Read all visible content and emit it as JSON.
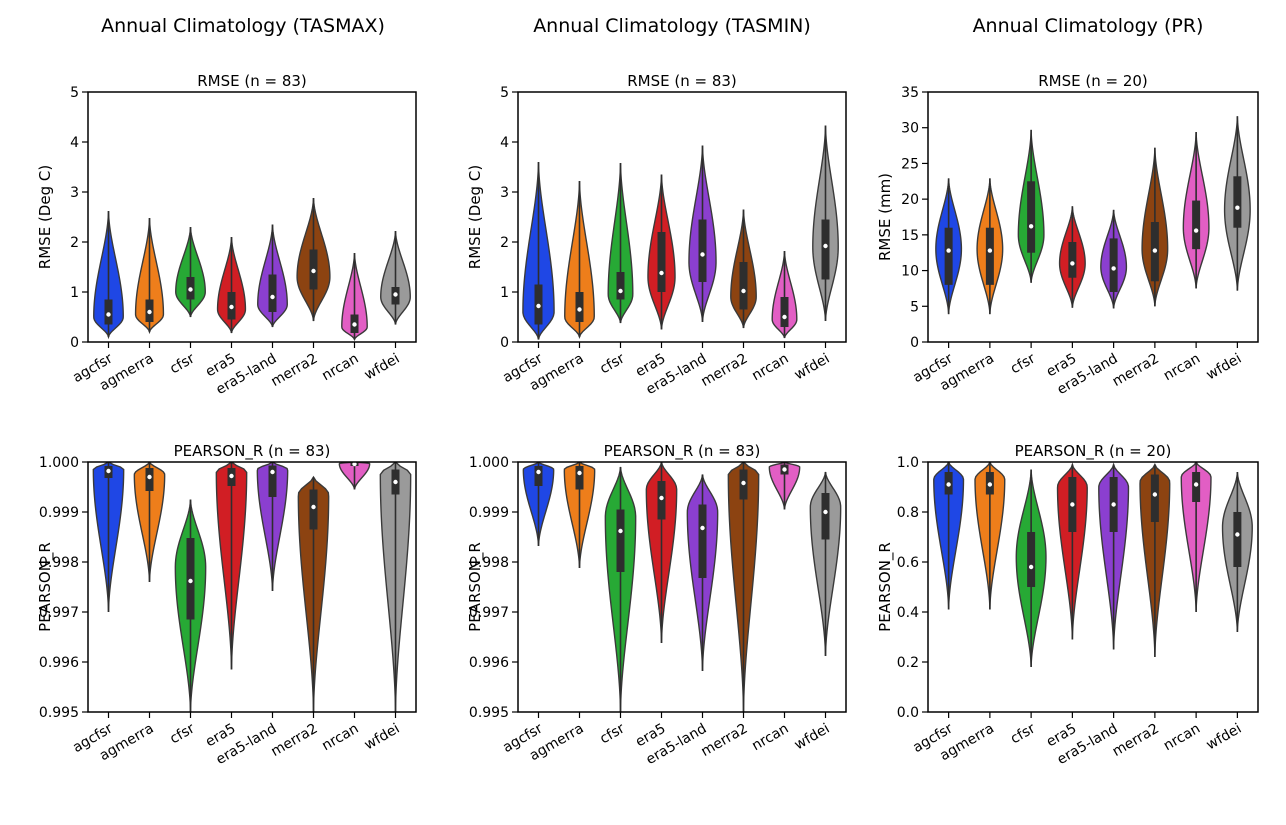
{
  "palette": {
    "agcfsr": "#1f47e5",
    "agmerra": "#ee7e1b",
    "cfsr": "#27a935",
    "era5": "#d11e24",
    "era5-land": "#8b3fd0",
    "merra2": "#8c4311",
    "nrcan": "#e25ec4",
    "wfdei": "#9a9a9a"
  },
  "column_titles": [
    "Annual Climatology (TASMAX)",
    "Annual Climatology (TASMIN)",
    "Annual Climatology (PR)"
  ],
  "chart_data": [
    {
      "type": "violin",
      "column": 0,
      "row": 0,
      "title": "RMSE (n = 83)",
      "xlabel": "",
      "ylabel": "RMSE (Deg C)",
      "ylim": [
        0,
        5
      ],
      "yticks": [
        "0",
        "1",
        "2",
        "3",
        "4",
        "5"
      ],
      "categories": [
        "agcfsr",
        "agmerra",
        "cfsr",
        "era5",
        "era5-land",
        "merra2",
        "nrcan",
        "wfdei"
      ],
      "series": [
        {
          "name": "agcfsr",
          "min": 0.1,
          "q1": 0.35,
          "median": 0.55,
          "q3": 0.85,
          "max": 2.62,
          "hw": 0.72,
          "peak": 0.5
        },
        {
          "name": "agmerra",
          "min": 0.2,
          "q1": 0.4,
          "median": 0.6,
          "q3": 0.85,
          "max": 2.48,
          "hw": 0.68,
          "peak": 0.55
        },
        {
          "name": "cfsr",
          "min": 0.5,
          "q1": 0.85,
          "median": 1.05,
          "q3": 1.3,
          "max": 2.3,
          "hw": 0.72,
          "peak": 1.0
        },
        {
          "name": "era5",
          "min": 0.18,
          "q1": 0.45,
          "median": 0.7,
          "q3": 1.0,
          "max": 2.1,
          "hw": 0.68,
          "peak": 0.65
        },
        {
          "name": "era5-land",
          "min": 0.3,
          "q1": 0.6,
          "median": 0.9,
          "q3": 1.35,
          "max": 2.35,
          "hw": 0.72,
          "peak": 0.75
        },
        {
          "name": "merra2",
          "min": 0.42,
          "q1": 1.05,
          "median": 1.42,
          "q3": 1.85,
          "max": 2.88,
          "hw": 0.8,
          "peak": 1.3
        },
        {
          "name": "nrcan",
          "min": 0.05,
          "q1": 0.18,
          "median": 0.35,
          "q3": 0.55,
          "max": 1.78,
          "hw": 0.62,
          "peak": 0.3
        },
        {
          "name": "wfdei",
          "min": 0.35,
          "q1": 0.75,
          "median": 0.95,
          "q3": 1.1,
          "max": 2.22,
          "hw": 0.72,
          "peak": 0.9
        }
      ]
    },
    {
      "type": "violin",
      "column": 1,
      "row": 0,
      "title": "RMSE (n = 83)",
      "xlabel": "",
      "ylabel": "RMSE (Deg C)",
      "ylim": [
        0,
        5
      ],
      "yticks": [
        "0",
        "1",
        "2",
        "3",
        "4",
        "5"
      ],
      "categories": [
        "agcfsr",
        "agmerra",
        "cfsr",
        "era5",
        "era5-land",
        "merra2",
        "nrcan",
        "wfdei"
      ],
      "series": [
        {
          "name": "agcfsr",
          "min": 0.05,
          "q1": 0.35,
          "median": 0.72,
          "q3": 1.15,
          "max": 3.6,
          "hw": 0.76,
          "peak": 0.6
        },
        {
          "name": "agmerra",
          "min": 0.1,
          "q1": 0.4,
          "median": 0.65,
          "q3": 1.0,
          "max": 3.22,
          "hw": 0.72,
          "peak": 0.5
        },
        {
          "name": "cfsr",
          "min": 0.38,
          "q1": 0.85,
          "median": 1.02,
          "q3": 1.4,
          "max": 3.58,
          "hw": 0.6,
          "peak": 0.95
        },
        {
          "name": "era5",
          "min": 0.25,
          "q1": 1.0,
          "median": 1.38,
          "q3": 2.2,
          "max": 3.35,
          "hw": 0.66,
          "peak": 1.3
        },
        {
          "name": "era5-land",
          "min": 0.4,
          "q1": 1.2,
          "median": 1.75,
          "q3": 2.45,
          "max": 3.93,
          "hw": 0.66,
          "peak": 1.6
        },
        {
          "name": "merra2",
          "min": 0.28,
          "q1": 0.65,
          "median": 1.02,
          "q3": 1.6,
          "max": 2.65,
          "hw": 0.62,
          "peak": 0.9
        },
        {
          "name": "nrcan",
          "min": 0.08,
          "q1": 0.3,
          "median": 0.5,
          "q3": 0.9,
          "max": 1.82,
          "hw": 0.6,
          "peak": 0.45
        },
        {
          "name": "wfdei",
          "min": 0.42,
          "q1": 1.25,
          "median": 1.92,
          "q3": 2.45,
          "max": 4.33,
          "hw": 0.62,
          "peak": 1.9
        }
      ]
    },
    {
      "type": "violin",
      "column": 2,
      "row": 0,
      "title": "RMSE (n = 20)",
      "xlabel": "",
      "ylabel": "RMSE (mm)",
      "ylim": [
        0,
        35
      ],
      "yticks": [
        "0",
        "5",
        "10",
        "15",
        "20",
        "25",
        "30",
        "35"
      ],
      "categories": [
        "agcfsr",
        "agmerra",
        "cfsr",
        "era5",
        "era5-land",
        "merra2",
        "nrcan",
        "wfdei"
      ],
      "series": [
        {
          "name": "agcfsr",
          "min": 3.9,
          "q1": 8.0,
          "median": 12.8,
          "q3": 16.0,
          "max": 22.9,
          "hw": 0.62,
          "peak": 13.0
        },
        {
          "name": "agmerra",
          "min": 3.9,
          "q1": 8.0,
          "median": 12.8,
          "q3": 16.0,
          "max": 22.9,
          "hw": 0.62,
          "peak": 13.0
        },
        {
          "name": "cfsr",
          "min": 8.3,
          "q1": 12.5,
          "median": 16.2,
          "q3": 22.5,
          "max": 29.7,
          "hw": 0.62,
          "peak": 15.0
        },
        {
          "name": "era5",
          "min": 4.8,
          "q1": 9.0,
          "median": 11.0,
          "q3": 14.0,
          "max": 19.0,
          "hw": 0.62,
          "peak": 11.0
        },
        {
          "name": "era5-land",
          "min": 4.7,
          "q1": 7.0,
          "median": 10.3,
          "q3": 14.5,
          "max": 18.5,
          "hw": 0.62,
          "peak": 10.5
        },
        {
          "name": "merra2",
          "min": 5.0,
          "q1": 8.5,
          "median": 12.8,
          "q3": 16.8,
          "max": 27.2,
          "hw": 0.62,
          "peak": 13.0
        },
        {
          "name": "nrcan",
          "min": 7.5,
          "q1": 13.0,
          "median": 15.6,
          "q3": 19.8,
          "max": 29.4,
          "hw": 0.62,
          "peak": 16.0
        },
        {
          "name": "wfdei",
          "min": 7.2,
          "q1": 16.0,
          "median": 18.8,
          "q3": 23.2,
          "max": 31.6,
          "hw": 0.62,
          "peak": 18.5
        }
      ]
    },
    {
      "type": "violin",
      "column": 0,
      "row": 1,
      "title": "PEARSON_R (n = 83)",
      "xlabel": "",
      "ylabel": "PEARSON_R",
      "ylim": [
        0.995,
        1.0
      ],
      "yticks": [
        "0.995",
        "0.996",
        "0.997",
        "0.998",
        "0.999",
        "1.000"
      ],
      "categories": [
        "agcfsr",
        "agmerra",
        "cfsr",
        "era5",
        "era5-land",
        "merra2",
        "nrcan",
        "wfdei"
      ],
      "series": [
        {
          "name": "agcfsr",
          "min": 0.997,
          "q1": 0.99968,
          "median": 0.99982,
          "q3": 0.99992,
          "max": 1.0,
          "hw": 0.74,
          "peak": 0.99985
        },
        {
          "name": "agmerra",
          "min": 0.9976,
          "q1": 0.99942,
          "median": 0.9997,
          "q3": 0.99988,
          "max": 1.0,
          "hw": 0.74,
          "peak": 0.99975
        },
        {
          "name": "cfsr",
          "min": 0.995,
          "q1": 0.99685,
          "median": 0.99762,
          "q3": 0.99848,
          "max": 0.99925,
          "hw": 0.74,
          "peak": 0.9979
        },
        {
          "name": "era5",
          "min": 0.99585,
          "q1": 0.99952,
          "median": 0.99972,
          "q3": 0.99988,
          "max": 1.0,
          "hw": 0.74,
          "peak": 0.9998
        },
        {
          "name": "era5-land",
          "min": 0.99742,
          "q1": 0.9993,
          "median": 0.9998,
          "q3": 0.99993,
          "max": 1.0,
          "hw": 0.74,
          "peak": 0.99985
        },
        {
          "name": "merra2",
          "min": 0.995,
          "q1": 0.99865,
          "median": 0.9991,
          "q3": 0.99945,
          "max": 0.9997,
          "hw": 0.74,
          "peak": 0.99935
        },
        {
          "name": "nrcan",
          "min": 0.99945,
          "q1": 0.99992,
          "median": 0.99996,
          "q3": 0.99999,
          "max": 1.0,
          "hw": 0.74,
          "peak": 0.99997
        },
        {
          "name": "wfdei",
          "min": 0.995,
          "q1": 0.99935,
          "median": 0.9996,
          "q3": 0.99985,
          "max": 1.0,
          "hw": 0.74,
          "peak": 0.99975
        }
      ]
    },
    {
      "type": "violin",
      "column": 1,
      "row": 1,
      "title": "PEARSON_R (n = 83)",
      "xlabel": "",
      "ylabel": "PEARSON_R",
      "ylim": [
        0.995,
        1.0
      ],
      "yticks": [
        "0.995",
        "0.996",
        "0.997",
        "0.998",
        "0.999",
        "1.000"
      ],
      "categories": [
        "agcfsr",
        "agmerra",
        "cfsr",
        "era5",
        "era5-land",
        "merra2",
        "nrcan",
        "wfdei"
      ],
      "series": [
        {
          "name": "agcfsr",
          "min": 0.99832,
          "q1": 0.99952,
          "median": 0.9998,
          "q3": 0.99992,
          "max": 1.0,
          "hw": 0.74,
          "peak": 0.99985
        },
        {
          "name": "agmerra",
          "min": 0.99788,
          "q1": 0.99945,
          "median": 0.99978,
          "q3": 0.99992,
          "max": 1.0,
          "hw": 0.74,
          "peak": 0.99985
        },
        {
          "name": "cfsr",
          "min": 0.995,
          "q1": 0.9978,
          "median": 0.99862,
          "q3": 0.99905,
          "max": 0.9999,
          "hw": 0.74,
          "peak": 0.9989
        },
        {
          "name": "era5",
          "min": 0.99638,
          "q1": 0.99885,
          "median": 0.99928,
          "q3": 0.99962,
          "max": 1.0,
          "hw": 0.74,
          "peak": 0.99945
        },
        {
          "name": "era5-land",
          "min": 0.99582,
          "q1": 0.99768,
          "median": 0.99868,
          "q3": 0.99915,
          "max": 0.99975,
          "hw": 0.74,
          "peak": 0.999
        },
        {
          "name": "merra2",
          "min": 0.995,
          "q1": 0.99925,
          "median": 0.99958,
          "q3": 0.99985,
          "max": 1.0,
          "hw": 0.74,
          "peak": 0.99975
        },
        {
          "name": "nrcan",
          "min": 0.99905,
          "q1": 0.99975,
          "median": 0.99985,
          "q3": 0.99995,
          "max": 1.0,
          "hw": 0.74,
          "peak": 0.9999
        },
        {
          "name": "wfdei",
          "min": 0.99612,
          "q1": 0.99845,
          "median": 0.999,
          "q3": 0.99938,
          "max": 0.9998,
          "hw": 0.74,
          "peak": 0.9991
        }
      ]
    },
    {
      "type": "violin",
      "column": 2,
      "row": 1,
      "title": "PEARSON_R (n = 20)",
      "xlabel": "",
      "ylabel": "PEARSON_R",
      "ylim": [
        0.0,
        1.0
      ],
      "yticks": [
        "0.0",
        "0.2",
        "0.4",
        "0.6",
        "0.8",
        "1.0"
      ],
      "categories": [
        "agcfsr",
        "agmerra",
        "cfsr",
        "era5",
        "era5-land",
        "merra2",
        "nrcan",
        "wfdei"
      ],
      "series": [
        {
          "name": "agcfsr",
          "min": 0.41,
          "q1": 0.87,
          "median": 0.91,
          "q3": 0.96,
          "max": 1.0,
          "hw": 0.72,
          "peak": 0.93
        },
        {
          "name": "agmerra",
          "min": 0.41,
          "q1": 0.87,
          "median": 0.91,
          "q3": 0.96,
          "max": 1.0,
          "hw": 0.72,
          "peak": 0.93
        },
        {
          "name": "cfsr",
          "min": 0.18,
          "q1": 0.5,
          "median": 0.58,
          "q3": 0.72,
          "max": 0.97,
          "hw": 0.72,
          "peak": 0.62
        },
        {
          "name": "era5",
          "min": 0.29,
          "q1": 0.72,
          "median": 0.83,
          "q3": 0.94,
          "max": 0.99,
          "hw": 0.72,
          "peak": 0.9
        },
        {
          "name": "era5-land",
          "min": 0.25,
          "q1": 0.72,
          "median": 0.83,
          "q3": 0.94,
          "max": 0.99,
          "hw": 0.72,
          "peak": 0.9
        },
        {
          "name": "merra2",
          "min": 0.22,
          "q1": 0.76,
          "median": 0.87,
          "q3": 0.95,
          "max": 0.99,
          "hw": 0.72,
          "peak": 0.92
        },
        {
          "name": "nrcan",
          "min": 0.4,
          "q1": 0.84,
          "median": 0.91,
          "q3": 0.96,
          "max": 1.0,
          "hw": 0.72,
          "peak": 0.94
        },
        {
          "name": "wfdei",
          "min": 0.32,
          "q1": 0.58,
          "median": 0.71,
          "q3": 0.8,
          "max": 0.96,
          "hw": 0.72,
          "peak": 0.74
        }
      ]
    }
  ]
}
